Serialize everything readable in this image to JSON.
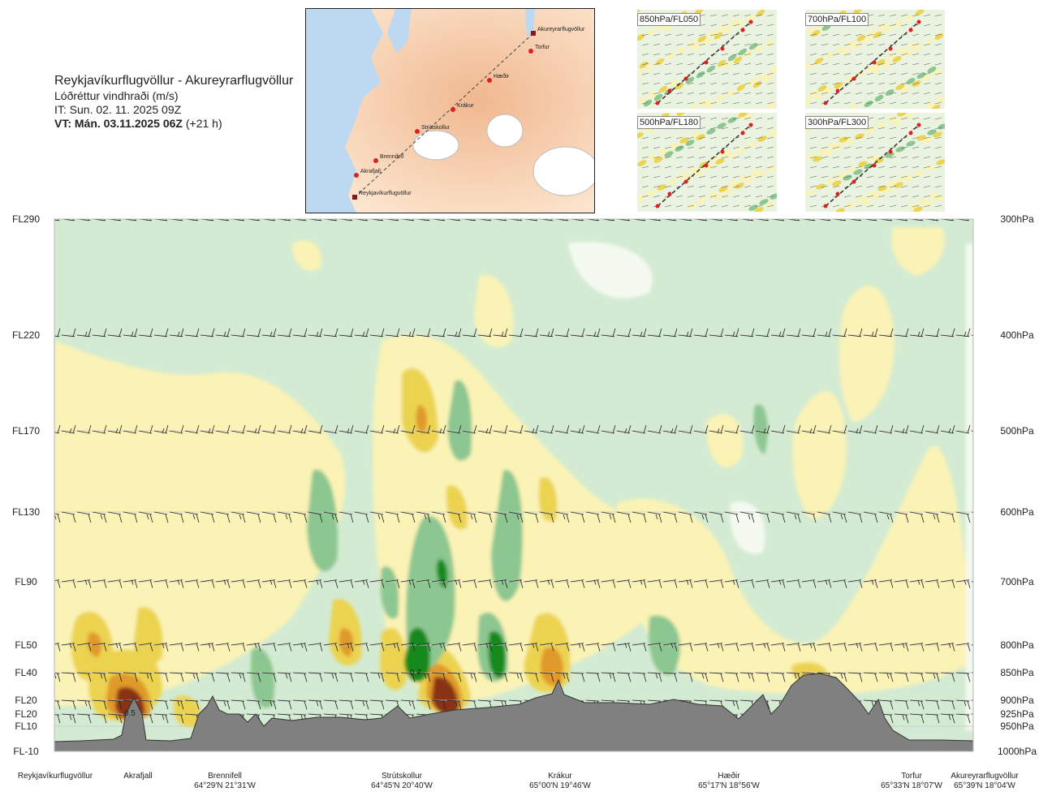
{
  "header": {
    "title": "Reykjavíkurflugvöllur - Akureyrarflugvöllur",
    "subtitle": "Lóðréttur vindhraði (m/s)",
    "issue_time": "IT: Sun. 02. 11. 2025 09Z",
    "valid_time_bold": "VT: Mán. 03.11.2025 06Z",
    "valid_time_rest": "(+21 h)"
  },
  "map": {
    "stations": [
      "Akureyrarflugvöllur",
      "Torfur",
      "Hæðir",
      "Krákur",
      "Strútskollur",
      "Brennifell",
      "Akrafjall",
      "Reykjavíkurflugvöllur"
    ]
  },
  "insets": [
    {
      "label": "850hPa/FL050"
    },
    {
      "label": "700hPa/FL100"
    },
    {
      "label": "500hPa/FL180"
    },
    {
      "label": "300hPa/FL300"
    }
  ],
  "colors": {
    "up_light": "#fbf3b6",
    "up_mid": "#ecd350",
    "up_strong": "#e09a2a",
    "up_max": "#8a3312",
    "down_light": "#d3ebd2",
    "down_mid": "#8cc690",
    "down_strong": "#14891f",
    "neutral": "#f5faf1",
    "terrain": "#808080"
  },
  "chart_data": {
    "type": "heatmap",
    "variable": "Lóðréttur vindhraði (m/s)",
    "left_axis_labels": [
      "FL290",
      "FL220",
      "FL170",
      "FL130",
      "FL90",
      "FL50",
      "FL40",
      "FL20",
      "FL20",
      "FL10",
      "FL-10"
    ],
    "right_axis_labels": [
      "300hPa",
      "400hPa",
      "500hPa",
      "600hPa",
      "700hPa",
      "800hPa",
      "850hPa",
      "900hPa",
      "925hPa",
      "950hPa",
      "1000hPa"
    ],
    "pressure_levels_hpa": [
      300,
      400,
      500,
      600,
      700,
      800,
      850,
      900,
      925,
      950,
      1000
    ],
    "stations": [
      {
        "name": "Reykjavíkurflugvöllur",
        "coords": ""
      },
      {
        "name": "Akrafjall",
        "coords": ""
      },
      {
        "name": "Brennifell",
        "coords": "64°29'N 21°31'W"
      },
      {
        "name": "Strútskollur",
        "coords": "64°45'N 20°40'W"
      },
      {
        "name": "Krákur",
        "coords": "65°00'N 19°46'W"
      },
      {
        "name": "Hæðir",
        "coords": "65°17'N 18°56'W"
      },
      {
        "name": "Torfur",
        "coords": "65°33'N 18°07'W"
      },
      {
        "name": "Akureyrarflugvöllur",
        "coords": "65°39'N 18°04'W"
      }
    ],
    "annotations": [
      "0.5",
      "0.7"
    ]
  }
}
